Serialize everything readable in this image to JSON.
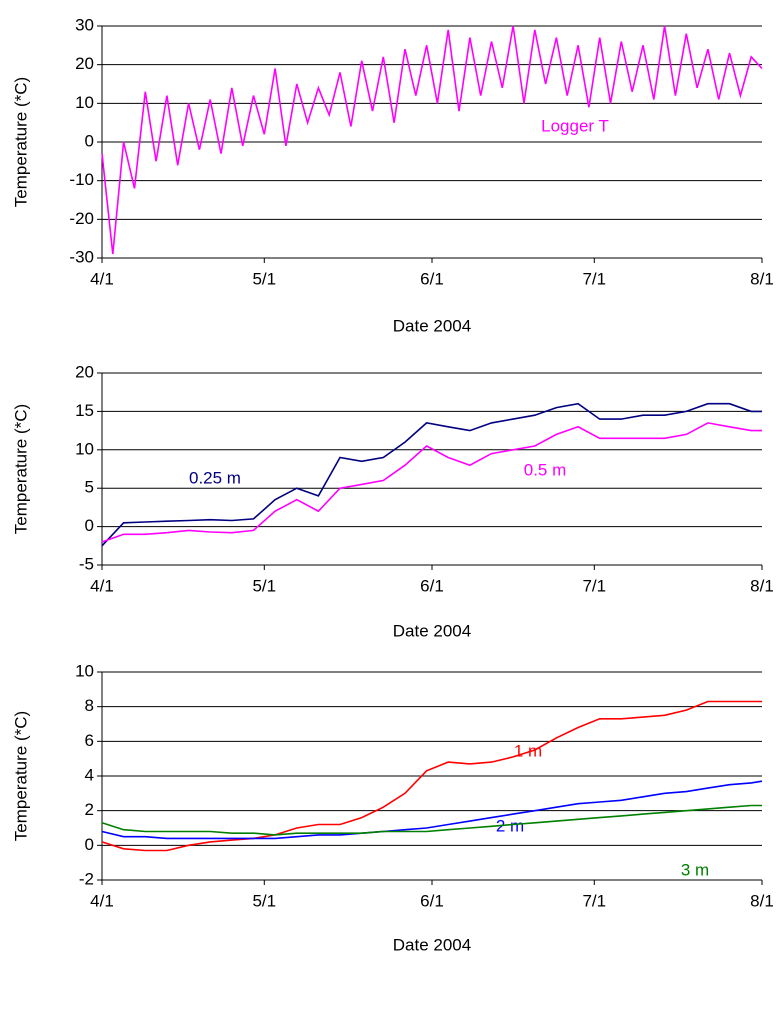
{
  "chart_data": [
    {
      "type": "line",
      "xlabel": "Date 2004",
      "ylabel": "Temperature (*C)",
      "x": [
        "4/1",
        "4/3",
        "4/5",
        "4/7",
        "4/9",
        "4/11",
        "4/13",
        "4/15",
        "4/17",
        "4/19",
        "4/21",
        "4/23",
        "4/25",
        "4/27",
        "4/29",
        "5/1",
        "5/3",
        "5/5",
        "5/7",
        "5/9",
        "5/11",
        "5/13",
        "5/15",
        "5/17",
        "5/19",
        "5/21",
        "5/23",
        "5/25",
        "5/27",
        "5/29",
        "5/31",
        "6/2",
        "6/4",
        "6/6",
        "6/8",
        "6/10",
        "6/12",
        "6/14",
        "6/16",
        "6/18",
        "6/20",
        "6/22",
        "6/24",
        "6/26",
        "6/28",
        "6/30",
        "7/2",
        "7/4",
        "7/6",
        "7/8",
        "7/10",
        "7/12",
        "7/14",
        "7/16",
        "7/18",
        "7/20",
        "7/22",
        "7/24",
        "7/26",
        "7/28",
        "7/30",
        "8/1"
      ],
      "series": [
        {
          "name": "Logger T",
          "color": "#ff00ff",
          "values": [
            -3,
            -29,
            0,
            -12,
            13,
            -5,
            12,
            -6,
            10,
            -2,
            11,
            -3,
            14,
            -1,
            12,
            2,
            19,
            -1,
            15,
            5,
            14,
            7,
            18,
            4,
            21,
            8,
            22,
            5,
            24,
            12,
            25,
            10,
            29,
            8,
            27,
            12,
            26,
            14,
            30,
            10,
            29,
            15,
            27,
            12,
            25,
            9,
            27,
            10,
            26,
            13,
            25,
            11,
            30,
            12,
            28,
            14,
            24,
            11,
            23,
            12,
            22,
            19
          ]
        }
      ],
      "xlim": [
        "4/1",
        "8/1"
      ],
      "xticks": [
        "4/1",
        "5/1",
        "6/1",
        "7/1",
        "8/1"
      ],
      "ylim": [
        -30,
        30
      ],
      "yticks": [
        -30,
        -20,
        -10,
        0,
        10,
        20,
        30
      ],
      "grid": true
    },
    {
      "type": "line",
      "xlabel": "Date 2004",
      "ylabel": "Temperature (*C)",
      "x": [
        "4/1",
        "4/5",
        "4/9",
        "4/13",
        "4/17",
        "4/21",
        "4/25",
        "4/29",
        "5/3",
        "5/7",
        "5/11",
        "5/15",
        "5/19",
        "5/23",
        "5/27",
        "5/31",
        "6/4",
        "6/8",
        "6/12",
        "6/16",
        "6/20",
        "6/24",
        "6/28",
        "7/2",
        "7/6",
        "7/10",
        "7/14",
        "7/18",
        "7/22",
        "7/26",
        "7/30",
        "8/1"
      ],
      "series": [
        {
          "name": "0.25 m",
          "color": "#000080",
          "values": [
            -2.5,
            0.5,
            0.6,
            0.7,
            0.8,
            0.9,
            0.8,
            1.0,
            3.5,
            5,
            4,
            9,
            8.5,
            9,
            11,
            13.5,
            13,
            12.5,
            13.5,
            14,
            14.5,
            15.5,
            16,
            14,
            14,
            14.5,
            14.5,
            15,
            16,
            16,
            15,
            15
          ]
        },
        {
          "name": "0.5 m",
          "color": "#ff00ff",
          "values": [
            -2,
            -1,
            -1,
            -0.8,
            -0.5,
            -0.7,
            -0.8,
            -0.5,
            2,
            3.5,
            2,
            5,
            5.5,
            6,
            8,
            10.5,
            9,
            8,
            9.5,
            10,
            10.5,
            12,
            13,
            11.5,
            11.5,
            11.5,
            11.5,
            12,
            13.5,
            13,
            12.5,
            12.5
          ]
        }
      ],
      "xlim": [
        "4/1",
        "8/1"
      ],
      "xticks": [
        "4/1",
        "5/1",
        "6/1",
        "7/1",
        "8/1"
      ],
      "ylim": [
        -5,
        20
      ],
      "yticks": [
        -5,
        0,
        5,
        10,
        15,
        20
      ],
      "grid": true
    },
    {
      "type": "line",
      "xlabel": "Date 2004",
      "ylabel": "Temperature (*C)",
      "x": [
        "4/1",
        "4/5",
        "4/9",
        "4/13",
        "4/17",
        "4/21",
        "4/25",
        "4/29",
        "5/3",
        "5/7",
        "5/11",
        "5/15",
        "5/19",
        "5/23",
        "5/27",
        "5/31",
        "6/4",
        "6/8",
        "6/12",
        "6/16",
        "6/20",
        "6/24",
        "6/28",
        "7/2",
        "7/6",
        "7/10",
        "7/14",
        "7/18",
        "7/22",
        "7/26",
        "7/30",
        "8/1"
      ],
      "series": [
        {
          "name": "1 m",
          "color": "#ff0000",
          "values": [
            0.2,
            -0.2,
            -0.3,
            -0.3,
            0,
            0.2,
            0.3,
            0.4,
            0.6,
            1.0,
            1.2,
            1.2,
            1.6,
            2.2,
            3.0,
            4.3,
            4.8,
            4.7,
            4.8,
            5.1,
            5.5,
            6.2,
            6.8,
            7.3,
            7.3,
            7.4,
            7.5,
            7.8,
            8.3,
            8.3,
            8.3,
            8.3
          ]
        },
        {
          "name": "2 m",
          "color": "#0000ff",
          "values": [
            0.8,
            0.5,
            0.5,
            0.4,
            0.4,
            0.4,
            0.4,
            0.4,
            0.4,
            0.5,
            0.6,
            0.6,
            0.7,
            0.8,
            0.9,
            1.0,
            1.2,
            1.4,
            1.6,
            1.8,
            2.0,
            2.2,
            2.4,
            2.5,
            2.6,
            2.8,
            3.0,
            3.1,
            3.3,
            3.5,
            3.6,
            3.7
          ]
        },
        {
          "name": "3 m",
          "color": "#008000",
          "values": [
            1.3,
            0.9,
            0.8,
            0.8,
            0.8,
            0.8,
            0.7,
            0.7,
            0.6,
            0.7,
            0.7,
            0.7,
            0.7,
            0.8,
            0.8,
            0.8,
            0.9,
            1.0,
            1.1,
            1.2,
            1.3,
            1.4,
            1.5,
            1.6,
            1.7,
            1.8,
            1.9,
            2.0,
            2.1,
            2.2,
            2.3,
            2.3
          ]
        }
      ],
      "xlim": [
        "4/1",
        "8/1"
      ],
      "xticks": [
        "4/1",
        "5/1",
        "6/1",
        "7/1",
        "8/1"
      ],
      "ylim": [
        -2,
        10
      ],
      "yticks": [
        -2,
        0,
        2,
        4,
        6,
        8,
        10
      ],
      "grid": true
    }
  ]
}
